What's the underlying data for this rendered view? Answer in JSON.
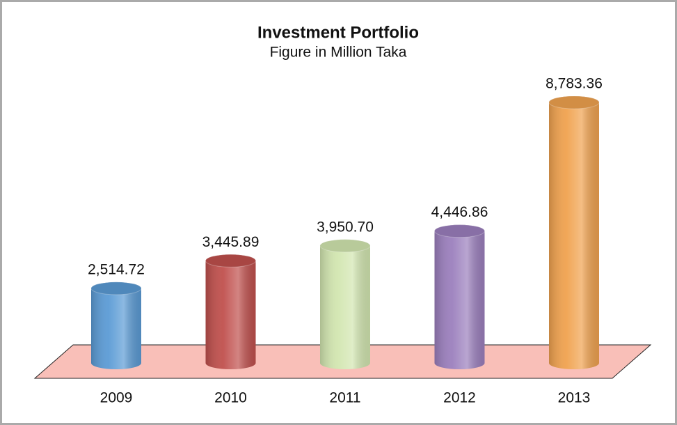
{
  "chart_data": {
    "type": "cylinder",
    "title": "Investment Portfolio",
    "subtitle": "Figure in Million Taka",
    "categories": [
      "2009",
      "2010",
      "2011",
      "2012",
      "2013"
    ],
    "values": [
      2514.72,
      3445.89,
      3950.7,
      4446.86,
      8783.36
    ],
    "value_labels": [
      "2,514.72",
      "3,445.89",
      "3,950.70",
      "4,446.86",
      "8,783.36"
    ],
    "colors": [
      "#5b9bd5",
      "#c0504d",
      "#d2e6b0",
      "#9b7fbd",
      "#f0a24f"
    ]
  }
}
